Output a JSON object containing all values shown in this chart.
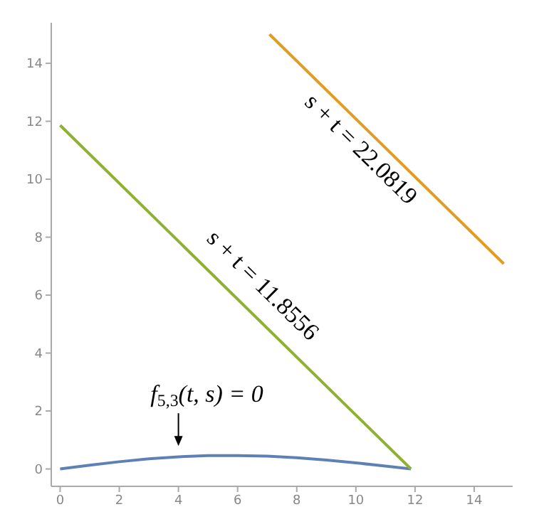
{
  "chart_data": {
    "type": "line",
    "xlim": [
      -0.3,
      15.3
    ],
    "ylim": [
      -0.6,
      15.4
    ],
    "xticks": [
      0,
      2,
      4,
      6,
      8,
      10,
      12,
      14
    ],
    "yticks": [
      0,
      2,
      4,
      6,
      8,
      10,
      12,
      14
    ],
    "grid": false,
    "marker": "none",
    "line_style": "solid",
    "series": [
      {
        "color": "#5e81b5",
        "x": [
          0,
          1,
          2,
          3,
          4,
          5,
          6,
          7,
          8,
          9,
          10,
          11,
          11.86
        ],
        "values": [
          0,
          0.13,
          0.25,
          0.35,
          0.42,
          0.46,
          0.46,
          0.44,
          0.39,
          0.31,
          0.21,
          0.1,
          0
        ]
      },
      {
        "color": "#8fb131",
        "x": [
          0,
          11.86
        ],
        "values": [
          11.86,
          0
        ]
      },
      {
        "color": "#e19c24",
        "x": [
          7.08,
          15
        ],
        "values": [
          15,
          7.08
        ]
      }
    ],
    "annotations": [
      {
        "text": "f$_{5,3}$(t, s) = 0",
        "x": 4,
        "y": 0.45
      },
      {
        "text": "s + t = 11.8556",
        "x": 6.2,
        "y": 5.66
      },
      {
        "text": "s + t = 22.0819",
        "x": 10.6,
        "y": 11.48
      }
    ]
  }
}
